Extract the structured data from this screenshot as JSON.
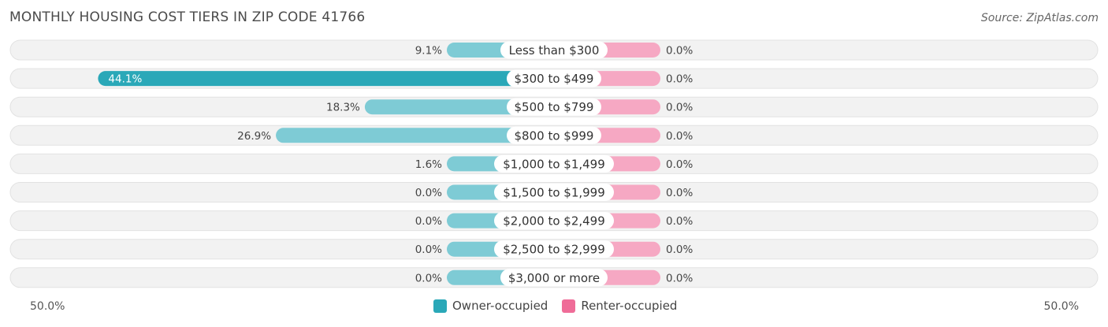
{
  "title": "MONTHLY HOUSING COST TIERS IN ZIP CODE 41766",
  "source": "Source: ZipAtlas.com",
  "colors": {
    "owner_bar": "#7ecbd5",
    "owner_bar_strong": "#2aa8b8",
    "renter_bar": "#f6a8c3",
    "legend_owner": "#2aa8b8",
    "legend_renter": "#ef6c98"
  },
  "chart_data": {
    "type": "bar",
    "orientation": "horizontal-diverging",
    "categories": [
      "Less than $300",
      "$300 to $499",
      "$500 to $799",
      "$800 to $999",
      "$1,000 to $1,499",
      "$1,500 to $1,999",
      "$2,000 to $2,499",
      "$2,500 to $2,999",
      "$3,000 or more"
    ],
    "series": [
      {
        "name": "Owner-occupied",
        "values": [
          9.1,
          44.1,
          18.3,
          26.9,
          1.6,
          0.0,
          0.0,
          0.0,
          0.0
        ],
        "labels": [
          "9.1%",
          "44.1%",
          "18.3%",
          "26.9%",
          "1.6%",
          "0.0%",
          "0.0%",
          "0.0%",
          "0.0%"
        ]
      },
      {
        "name": "Renter-occupied",
        "values": [
          0.0,
          0.0,
          0.0,
          0.0,
          0.0,
          0.0,
          0.0,
          0.0,
          0.0
        ],
        "labels": [
          "0.0%",
          "0.0%",
          "0.0%",
          "0.0%",
          "0.0%",
          "0.0%",
          "0.0%",
          "0.0%",
          "0.0%"
        ]
      }
    ],
    "xlim": [
      -50,
      50
    ],
    "axis_left_label": "50.0%",
    "axis_right_label": "50.0%",
    "legend_position": "bottom-center"
  }
}
